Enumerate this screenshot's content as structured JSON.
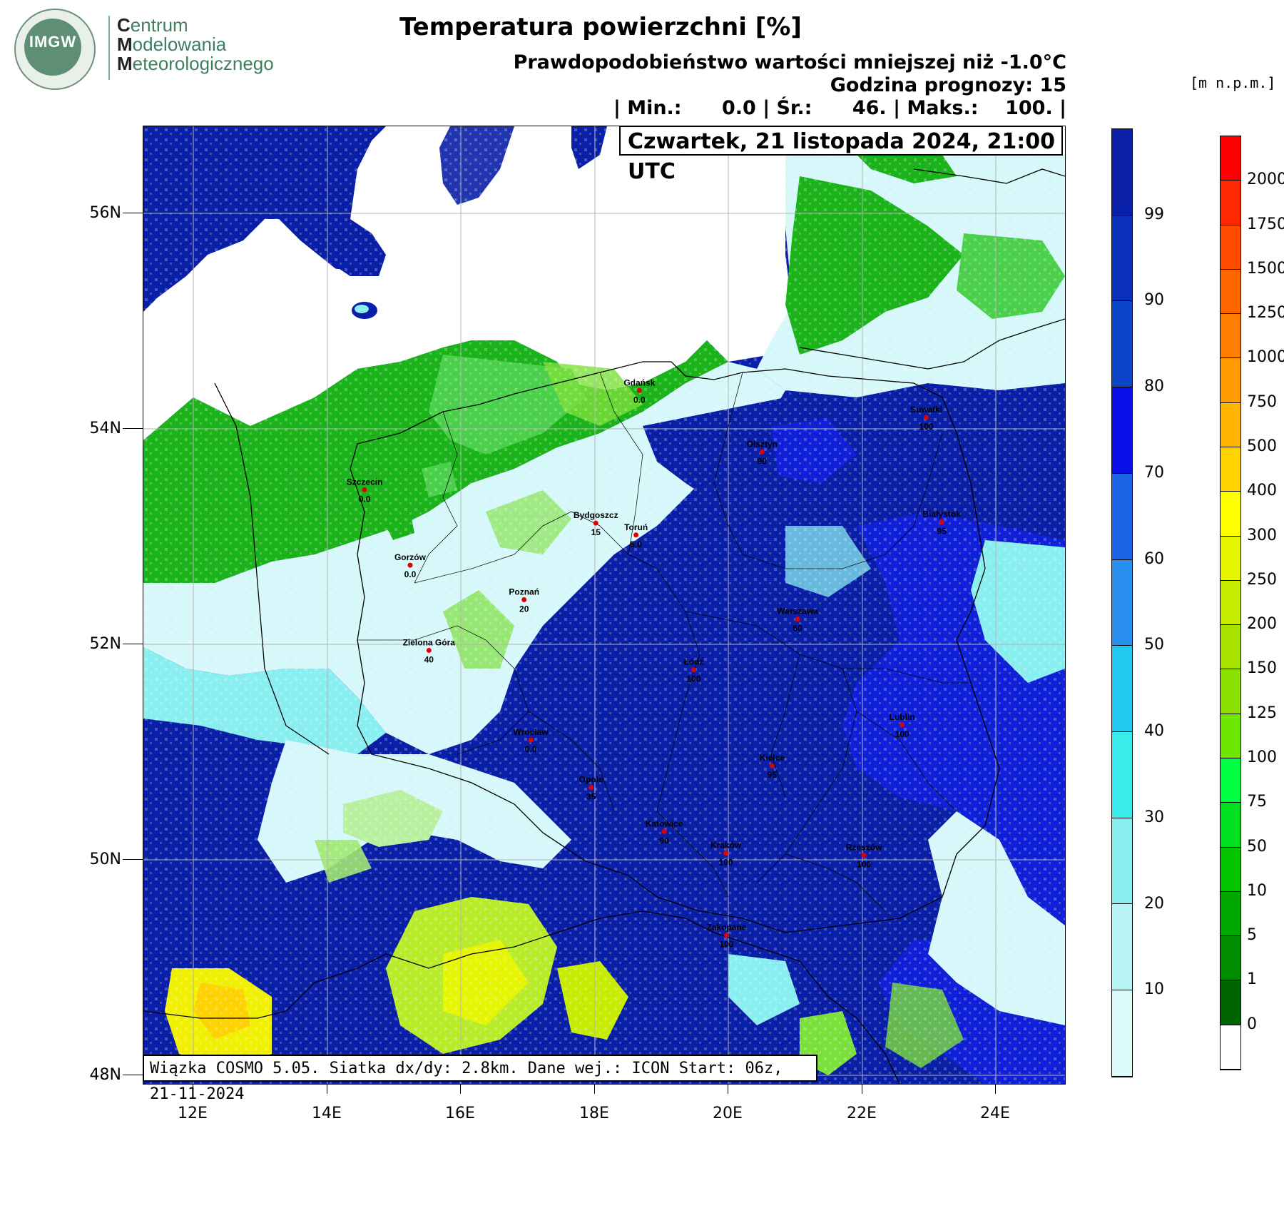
{
  "logo": {
    "mark": "IMGW",
    "line1_first": "C",
    "line1_rest": "entrum",
    "line2_first": "M",
    "line2_rest": "odelowania",
    "line3_first": "M",
    "line3_rest": "eteorologicznego"
  },
  "header": {
    "title": "Temperatura powierzchni [%]",
    "subtitle": "Prawdopodobieństwo wartości mniejszej niż -1.0°C",
    "forecast_hour": "Godzina prognozy: 15",
    "stats": "| Min.:      0.0 | Śr.:      46. | Maks.:    100. |",
    "date": "Czwartek, 21 listopada 2024, 21:00 UTC",
    "model_info": "Wiązka COSMO 5.05. Siatka dx/dy: 2.8km. Dane wej.: ICON Start: 06z, 21-11-2024",
    "elevation_unit": "[m n.p.m.]"
  },
  "axes": {
    "lat_labels": [
      "56N",
      "54N",
      "52N",
      "50N",
      "48N"
    ],
    "lon_labels": [
      "12E",
      "14E",
      "16E",
      "18E",
      "20E",
      "22E",
      "24E"
    ]
  },
  "cities": [
    {
      "name": "Gdańsk",
      "value": "0.0",
      "lon": 18.65,
      "lat": 54.35
    },
    {
      "name": "Olsztyn",
      "value": "90",
      "lon": 20.48,
      "lat": 53.78
    },
    {
      "name": "Suwałki",
      "value": "100",
      "lon": 22.93,
      "lat": 54.1
    },
    {
      "name": "Szczecin",
      "value": "0.0",
      "lon": 14.55,
      "lat": 53.43
    },
    {
      "name": "Bydgoszcz",
      "value": "15",
      "lon": 18.0,
      "lat": 53.12
    },
    {
      "name": "Toruń",
      "value": "5.0",
      "lon": 18.6,
      "lat": 53.01
    },
    {
      "name": "Białystok",
      "value": "95",
      "lon": 23.16,
      "lat": 53.13
    },
    {
      "name": "Gorzów",
      "value": "0.0",
      "lon": 15.23,
      "lat": 52.73
    },
    {
      "name": "Poznań",
      "value": "20",
      "lon": 16.93,
      "lat": 52.41
    },
    {
      "name": "Warszawa",
      "value": "60",
      "lon": 21.01,
      "lat": 52.23
    },
    {
      "name": "Zielona Góra",
      "value": "40",
      "lon": 15.51,
      "lat": 51.94
    },
    {
      "name": "Łódź",
      "value": "100",
      "lon": 19.46,
      "lat": 51.76
    },
    {
      "name": "Wrocław",
      "value": "0.0",
      "lon": 17.03,
      "lat": 51.11
    },
    {
      "name": "Lublin",
      "value": "100",
      "lon": 22.57,
      "lat": 51.25
    },
    {
      "name": "Kielce",
      "value": "95",
      "lon": 20.63,
      "lat": 50.87
    },
    {
      "name": "Opole",
      "value": "35",
      "lon": 17.93,
      "lat": 50.67
    },
    {
      "name": "Katowice",
      "value": "90",
      "lon": 19.02,
      "lat": 50.26
    },
    {
      "name": "Kraków",
      "value": "100",
      "lon": 19.94,
      "lat": 50.06
    },
    {
      "name": "Rzeszów",
      "value": "100",
      "lon": 22.0,
      "lat": 50.04
    },
    {
      "name": "Zakopane",
      "value": "100",
      "lon": 19.95,
      "lat": 49.3
    }
  ],
  "legend_probability": {
    "labels": [
      "99",
      "90",
      "80",
      "70",
      "60",
      "50",
      "40",
      "30",
      "20",
      "10"
    ],
    "colors": [
      "#0a1fa8",
      "#0a2fb8",
      "#0a45c8",
      "#0a10e8",
      "#1e64e6",
      "#2a90f0",
      "#22c8f0",
      "#38ecec",
      "#88eef0",
      "#b8f4f4",
      "#dcfafa"
    ]
  },
  "legend_elevation": {
    "labels": [
      "2000",
      "1750",
      "1500",
      "1250",
      "1000",
      "750",
      "500",
      "400",
      "300",
      "250",
      "200",
      "150",
      "125",
      "100",
      "75",
      "50",
      "10",
      "5",
      "1",
      "0"
    ],
    "colors": [
      "#ff0000",
      "#ff2800",
      "#ff4a00",
      "#ff6600",
      "#ff7e00",
      "#ff9a00",
      "#ffb400",
      "#ffd200",
      "#ffff00",
      "#e6f500",
      "#c8ec00",
      "#a8e400",
      "#8ee000",
      "#6ee600",
      "#00ff40",
      "#00e020",
      "#00c400",
      "#00a800",
      "#008c00",
      "#006400",
      "#ffffff"
    ]
  },
  "colors": {
    "sea": "#ffffff",
    "deep_blue": "#0a1fa8",
    "blue": "#1020d8",
    "light_cyan": "#d6f8fa",
    "green": "#1ab41a",
    "light_green": "#7ce03a",
    "yellow": "#f0f000"
  }
}
